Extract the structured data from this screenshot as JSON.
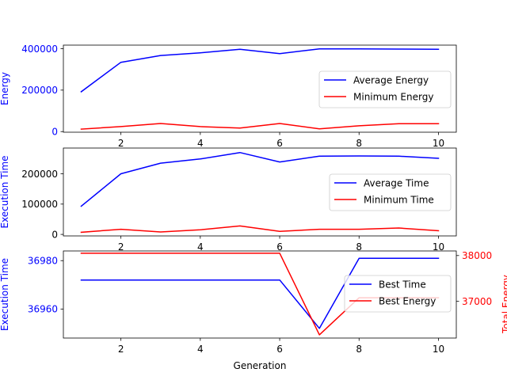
{
  "chart_data": [
    {
      "type": "line",
      "x": [
        1,
        2,
        3,
        4,
        5,
        6,
        7,
        8,
        9,
        10
      ],
      "xticks": [
        2,
        4,
        6,
        8,
        10
      ],
      "xlim": [
        0.55,
        10.45
      ],
      "ylabel": "Energy",
      "ylabel_color": "#0000ff",
      "ylim": [
        -3000,
        417000
      ],
      "yticks": [
        0,
        200000,
        400000
      ],
      "ytick_color": "#0000ff",
      "legend": "center-right",
      "series": [
        {
          "name": "Average Energy",
          "color": "#0000ff",
          "values": [
            192000,
            334000,
            367000,
            380000,
            397000,
            376000,
            399000,
            399000,
            398000,
            397000
          ]
        },
        {
          "name": "Minimum Energy",
          "color": "#ff0000",
          "values": [
            12000,
            24000,
            39000,
            24000,
            17000,
            39000,
            13000,
            28000,
            38000,
            38000
          ]
        }
      ]
    },
    {
      "type": "line",
      "x": [
        1,
        2,
        3,
        4,
        5,
        6,
        7,
        8,
        9,
        10
      ],
      "xticks": [
        2,
        4,
        6,
        8,
        10
      ],
      "xlim": [
        0.55,
        10.45
      ],
      "ylabel": "Execution Time",
      "ylabel_color": "#0000ff",
      "ylim": [
        -5000,
        285000
      ],
      "yticks": [
        0,
        100000,
        200000
      ],
      "ytick_color": "#000000",
      "legend": "center-right",
      "series": [
        {
          "name": "Average Time",
          "color": "#0000ff",
          "values": [
            93000,
            200000,
            235000,
            249000,
            270000,
            239000,
            258000,
            259000,
            258000,
            251000
          ]
        },
        {
          "name": "Minimum Time",
          "color": "#ff0000",
          "values": [
            7000,
            17000,
            8000,
            15000,
            28000,
            10000,
            17000,
            17000,
            21000,
            12000
          ]
        }
      ]
    },
    {
      "type": "line",
      "x": [
        1,
        2,
        3,
        4,
        5,
        6,
        7,
        8,
        9,
        10
      ],
      "xticks": [
        2,
        4,
        6,
        8,
        10
      ],
      "xlim": [
        0.55,
        10.45
      ],
      "xlabel": "Generation",
      "ylabel": "Execution Time",
      "ylabel_color": "#0000ff",
      "ylim": [
        36948,
        36984
      ],
      "yticks": [
        36960,
        36980
      ],
      "ytick_color": "#0000ff",
      "ylabel2": "Total Energy",
      "ylabel2_color": "#ff0000",
      "ylim2": [
        36200,
        38100
      ],
      "yticks2": [
        37000,
        38000
      ],
      "ytick2_color": "#ff0000",
      "legend": "center-right",
      "series": [
        {
          "name": "Best Time",
          "color": "#0000ff",
          "axis": "left",
          "values": [
            36972,
            36972,
            36972,
            36972,
            36972,
            36972,
            36952,
            36981,
            36981,
            36981
          ]
        },
        {
          "name": "Best Energy",
          "color": "#ff0000",
          "axis": "right",
          "values": [
            38050,
            38050,
            38050,
            38050,
            38050,
            38050,
            36270,
            37080,
            37080,
            37080
          ]
        }
      ]
    }
  ]
}
